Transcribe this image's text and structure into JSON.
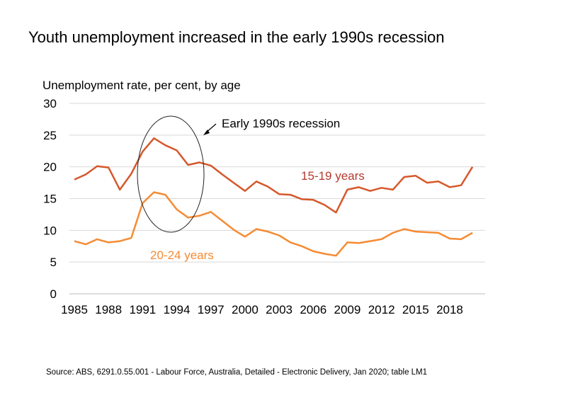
{
  "chart_data": {
    "type": "line",
    "title": "Youth unemployment increased in the early 1990s recession",
    "ylabel": "Unemployment rate, per cent, by age",
    "xlabel": "",
    "ylim": [
      0,
      30
    ],
    "yticks": [
      0,
      5,
      10,
      15,
      20,
      25,
      30
    ],
    "xticks": [
      1985,
      1988,
      1991,
      1994,
      1997,
      2000,
      2003,
      2006,
      2009,
      2012,
      2015,
      2018
    ],
    "grid": true,
    "x": [
      1985,
      1986,
      1987,
      1988,
      1989,
      1990,
      1991,
      1992,
      1993,
      1994,
      1995,
      1996,
      1997,
      1998,
      1999,
      2000,
      2001,
      2002,
      2003,
      2004,
      2005,
      2006,
      2007,
      2008,
      2009,
      2010,
      2011,
      2012,
      2013,
      2014,
      2015,
      2016,
      2017,
      2018,
      2019,
      2020
    ],
    "series": [
      {
        "name": "15-19 years",
        "color": "#D6582B",
        "label_color": "#B53A2E",
        "values": [
          18.0,
          18.8,
          20.1,
          19.9,
          16.4,
          18.9,
          22.4,
          24.5,
          23.4,
          22.6,
          20.3,
          20.7,
          20.2,
          18.8,
          17.5,
          16.2,
          17.7,
          16.9,
          15.7,
          15.6,
          14.9,
          14.8,
          14.0,
          12.8,
          16.4,
          16.8,
          16.2,
          16.7,
          16.4,
          18.4,
          18.6,
          17.5,
          17.7,
          16.8,
          17.1,
          20.0
        ]
      },
      {
        "name": "20-24 years",
        "color": "#F68B33",
        "label_color": "#F68B33",
        "values": [
          8.3,
          7.8,
          8.6,
          8.1,
          8.3,
          8.8,
          14.3,
          16.0,
          15.6,
          13.3,
          12.0,
          12.3,
          12.9,
          11.5,
          10.1,
          9.0,
          10.2,
          9.8,
          9.2,
          8.1,
          7.5,
          6.7,
          6.3,
          6.0,
          8.1,
          8.0,
          8.3,
          8.6,
          9.6,
          10.2,
          9.8,
          9.7,
          9.6,
          8.7,
          8.6,
          9.6
        ]
      }
    ],
    "annotation": "Early 1990s recession",
    "source": "Source: ABS, 6291.0.55.001 - Labour Force, Australia, Detailed - Electronic Delivery, Jan 2020; table LM1"
  }
}
